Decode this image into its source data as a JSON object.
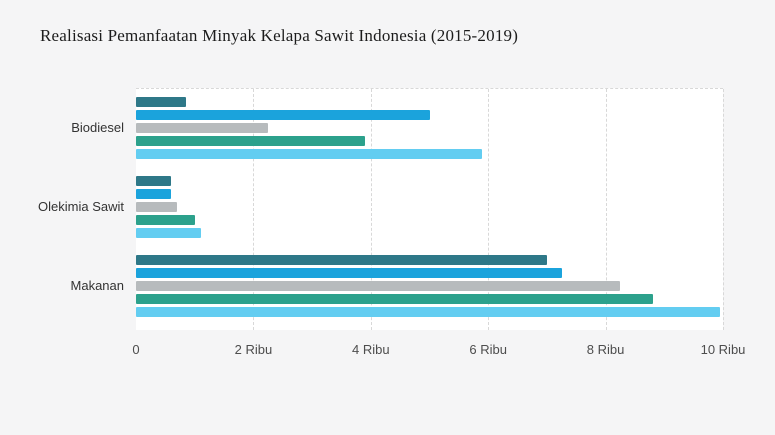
{
  "page": {
    "background": "#f5f5f6",
    "plot_background": "#ffffff"
  },
  "chart_data": {
    "type": "bar",
    "orientation": "horizontal",
    "title": "Realisasi Pemanfaatan Minyak Kelapa Sawit Indonesia (2015-2019)",
    "categories": [
      "Biodiesel",
      "Olekimia Sawit",
      "Makanan"
    ],
    "series": [
      {
        "color": "#2e7888",
        "values": [
          850,
          600,
          7000
        ]
      },
      {
        "color": "#1ba3dc",
        "values": [
          5000,
          600,
          7250
        ]
      },
      {
        "color": "#b7bbbd",
        "values": [
          2250,
          700,
          8250
        ]
      },
      {
        "color": "#2ca18c",
        "values": [
          3900,
          1000,
          8800
        ]
      },
      {
        "color": "#63cdf1",
        "values": [
          5900,
          1100,
          9950
        ]
      }
    ],
    "x_ticks": [
      "0",
      "2 Ribu",
      "4 Ribu",
      "6 Ribu",
      "8 Ribu",
      "10 Ribu"
    ],
    "x_tick_values": [
      0,
      2000,
      4000,
      6000,
      8000,
      10000
    ],
    "xlim": [
      0,
      10000
    ],
    "grid": "dashed vertical gridlines, dashed plot top border",
    "legend": "none"
  }
}
